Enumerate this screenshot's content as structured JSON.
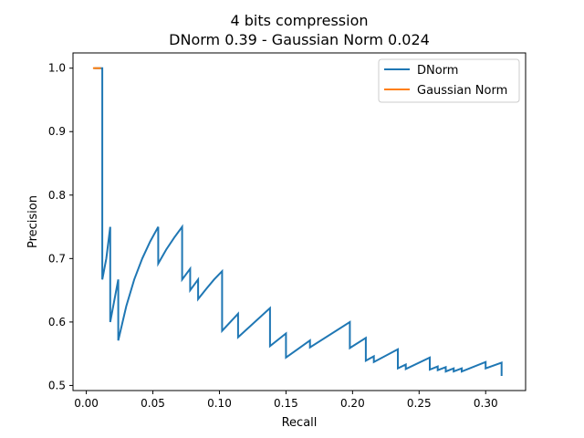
{
  "chart_data": {
    "type": "line",
    "title": "4 bits compression",
    "subtitle": "DNorm 0.39 - Gaussian Norm 0.024",
    "xlabel": "Recall",
    "ylabel": "Precision",
    "xlim": [
      -0.01,
      0.33
    ],
    "ylim": [
      0.492,
      1.024
    ],
    "xticks": [
      0.0,
      0.05,
      0.1,
      0.15,
      0.2,
      0.25,
      0.3
    ],
    "xtick_labels": [
      "0.00",
      "0.05",
      "0.10",
      "0.15",
      "0.20",
      "0.25",
      "0.30"
    ],
    "yticks": [
      0.5,
      0.6,
      0.7,
      0.8,
      0.9,
      1.0
    ],
    "ytick_labels": [
      "0.5",
      "0.6",
      "0.7",
      "0.8",
      "0.9",
      "1.0"
    ],
    "grid": false,
    "legend_position": "upper right",
    "series": [
      {
        "name": "DNorm",
        "color": "#1f77b4",
        "points": [
          [
            0.006,
            1.0
          ],
          [
            0.012,
            1.0
          ],
          [
            0.012,
            0.667
          ],
          [
            0.015,
            0.7
          ],
          [
            0.018,
            0.75
          ],
          [
            0.018,
            0.6
          ],
          [
            0.024,
            0.667
          ],
          [
            0.024,
            0.571
          ],
          [
            0.03,
            0.625
          ],
          [
            0.036,
            0.667
          ],
          [
            0.042,
            0.7
          ],
          [
            0.048,
            0.727
          ],
          [
            0.054,
            0.75
          ],
          [
            0.054,
            0.692
          ],
          [
            0.06,
            0.714
          ],
          [
            0.066,
            0.733
          ],
          [
            0.072,
            0.75
          ],
          [
            0.072,
            0.667
          ],
          [
            0.078,
            0.684
          ],
          [
            0.078,
            0.65
          ],
          [
            0.084,
            0.667
          ],
          [
            0.084,
            0.636
          ],
          [
            0.09,
            0.652
          ],
          [
            0.096,
            0.667
          ],
          [
            0.102,
            0.68
          ],
          [
            0.102,
            0.586
          ],
          [
            0.114,
            0.613
          ],
          [
            0.114,
            0.576
          ],
          [
            0.138,
            0.622
          ],
          [
            0.138,
            0.562
          ],
          [
            0.15,
            0.582
          ],
          [
            0.15,
            0.544
          ],
          [
            0.168,
            0.571
          ],
          [
            0.168,
            0.56
          ],
          [
            0.198,
            0.6
          ],
          [
            0.198,
            0.559
          ],
          [
            0.21,
            0.575
          ],
          [
            0.21,
            0.539
          ],
          [
            0.216,
            0.546
          ],
          [
            0.216,
            0.537
          ],
          [
            0.234,
            0.557
          ],
          [
            0.234,
            0.527
          ],
          [
            0.24,
            0.533
          ],
          [
            0.24,
            0.526
          ],
          [
            0.258,
            0.544
          ],
          [
            0.258,
            0.525
          ],
          [
            0.264,
            0.53
          ],
          [
            0.264,
            0.524
          ],
          [
            0.27,
            0.529
          ],
          [
            0.27,
            0.522
          ],
          [
            0.276,
            0.527
          ],
          [
            0.276,
            0.522
          ],
          [
            0.282,
            0.527
          ],
          [
            0.282,
            0.522
          ],
          [
            0.3,
            0.537
          ],
          [
            0.3,
            0.527
          ],
          [
            0.312,
            0.536
          ],
          [
            0.312,
            0.515
          ]
        ]
      },
      {
        "name": "Gaussian Norm",
        "color": "#ff7f0e",
        "points": [
          [
            0.005,
            1.0
          ],
          [
            0.011,
            1.0
          ]
        ]
      }
    ]
  }
}
